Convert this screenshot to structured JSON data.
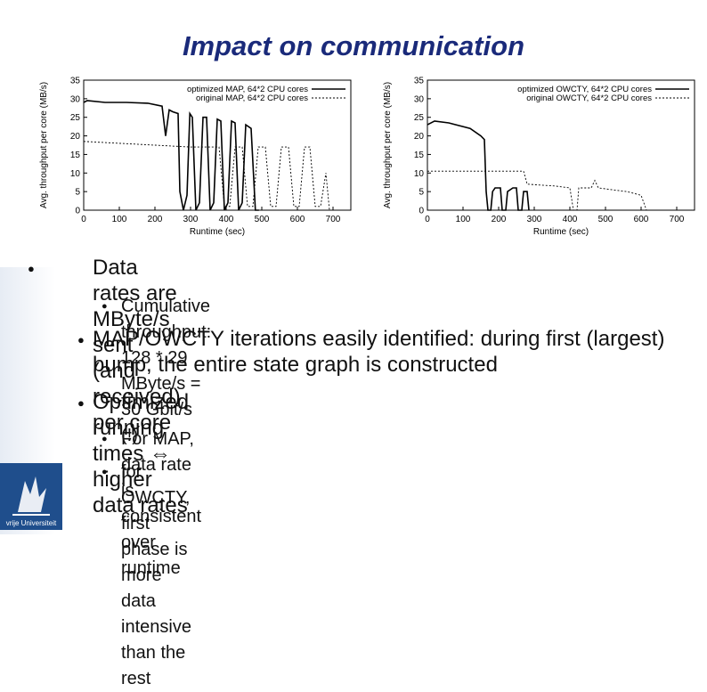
{
  "slide": {
    "title": "Impact on communication",
    "logo_text": "vrije Universiteit"
  },
  "bullets": [
    {
      "level": 1,
      "text": "Data rates are MByte/s sent (and received) per core"
    },
    {
      "level": 2,
      "text": "Cumulative throughput: 128 * 29 MByte/s = 30 Gbit/s (!)"
    },
    {
      "level": 1,
      "text": "MAP/OWCTY iterations easily identified: during first (largest) bump, the entire state graph is constructed"
    },
    {
      "level": 1,
      "text": "Optimized running times ⇔ higher data rates"
    },
    {
      "level": 2,
      "text": "For MAP, data rate is consistent over runtime"
    },
    {
      "level": 2,
      "text": "for OWCTY, first phase is more data intensive than the rest"
    }
  ],
  "colors": {
    "title": "#1a2a7a",
    "solid": "#000000",
    "dashed": "#333333"
  },
  "chart_data": [
    {
      "type": "line",
      "xlabel": "Runtime (sec)",
      "ylabel": "Avg. throughput per core (MB/s)",
      "xlim": [
        0,
        750
      ],
      "ylim": [
        0,
        35
      ],
      "xticks": [
        "0",
        "100",
        "200",
        "300",
        "400",
        "500",
        "600",
        "700"
      ],
      "yticks": [
        "0",
        "5",
        "10",
        "15",
        "20",
        "25",
        "30",
        "35"
      ],
      "legend_position": "top-right",
      "series": [
        {
          "name": "optimized MAP, 64*2 CPU cores",
          "style": "solid",
          "points": [
            [
              0,
              29
            ],
            [
              10,
              29.5
            ],
            [
              60,
              29
            ],
            [
              120,
              29
            ],
            [
              180,
              28.8
            ],
            [
              220,
              28
            ],
            [
              230,
              20
            ],
            [
              240,
              27
            ],
            [
              250,
              26.5
            ],
            [
              265,
              26
            ],
            [
              270,
              5
            ],
            [
              280,
              0
            ],
            [
              290,
              4
            ],
            [
              298,
              26
            ],
            [
              305,
              25
            ],
            [
              315,
              0
            ],
            [
              325,
              2
            ],
            [
              335,
              25
            ],
            [
              345,
              25
            ],
            [
              355,
              0
            ],
            [
              365,
              2
            ],
            [
              375,
              24.5
            ],
            [
              385,
              24
            ],
            [
              395,
              0
            ],
            [
              405,
              2
            ],
            [
              415,
              24
            ],
            [
              425,
              23.5
            ],
            [
              435,
              0
            ],
            [
              445,
              2
            ],
            [
              455,
              23
            ],
            [
              470,
              22
            ],
            [
              482,
              0
            ],
            [
              492,
              0
            ]
          ]
        },
        {
          "name": "original MAP, 64*2 CPU cores",
          "style": "dashed",
          "points": [
            [
              0,
              18.5
            ],
            [
              100,
              18
            ],
            [
              200,
              17.5
            ],
            [
              300,
              17
            ],
            [
              380,
              17
            ],
            [
              395,
              1
            ],
            [
              410,
              1
            ],
            [
              425,
              17
            ],
            [
              445,
              17
            ],
            [
              460,
              1
            ],
            [
              475,
              1
            ],
            [
              490,
              17
            ],
            [
              510,
              17
            ],
            [
              525,
              1
            ],
            [
              540,
              1
            ],
            [
              555,
              17
            ],
            [
              575,
              17
            ],
            [
              590,
              1
            ],
            [
              605,
              1
            ],
            [
              620,
              17
            ],
            [
              635,
              17
            ],
            [
              650,
              1
            ],
            [
              665,
              1
            ],
            [
              680,
              10
            ],
            [
              690,
              0
            ]
          ]
        }
      ]
    },
    {
      "type": "line",
      "xlabel": "Runtime (sec)",
      "ylabel": "Avg. throughput per core (MB/s)",
      "xlim": [
        0,
        750
      ],
      "ylim": [
        0,
        35
      ],
      "xticks": [
        "0",
        "100",
        "200",
        "300",
        "400",
        "500",
        "600",
        "700"
      ],
      "yticks": [
        "0",
        "5",
        "10",
        "15",
        "20",
        "25",
        "30",
        "35"
      ],
      "legend_position": "top-right",
      "series": [
        {
          "name": "optimized OWCTY, 64*2 CPU cores",
          "style": "solid",
          "points": [
            [
              0,
              23
            ],
            [
              20,
              24
            ],
            [
              60,
              23.5
            ],
            [
              120,
              22
            ],
            [
              150,
              20
            ],
            [
              160,
              19
            ],
            [
              165,
              5
            ],
            [
              170,
              0
            ],
            [
              178,
              0
            ],
            [
              183,
              5
            ],
            [
              190,
              6
            ],
            [
              205,
              6
            ],
            [
              210,
              0
            ],
            [
              220,
              0
            ],
            [
              225,
              5
            ],
            [
              240,
              6
            ],
            [
              250,
              6
            ],
            [
              255,
              0
            ],
            [
              265,
              0
            ],
            [
              270,
              5
            ],
            [
              280,
              5
            ],
            [
              285,
              0
            ]
          ]
        },
        {
          "name": "original OWCTY, 64*2 CPU cores",
          "style": "dashed",
          "points": [
            [
              0,
              10.5
            ],
            [
              100,
              10.5
            ],
            [
              200,
              10.5
            ],
            [
              270,
              10.5
            ],
            [
              280,
              7
            ],
            [
              360,
              6.5
            ],
            [
              400,
              6
            ],
            [
              410,
              0
            ],
            [
              420,
              0
            ],
            [
              425,
              6
            ],
            [
              460,
              6
            ],
            [
              470,
              8
            ],
            [
              480,
              6
            ],
            [
              520,
              5.5
            ],
            [
              560,
              5
            ],
            [
              600,
              4
            ],
            [
              615,
              0
            ]
          ]
        }
      ]
    }
  ]
}
